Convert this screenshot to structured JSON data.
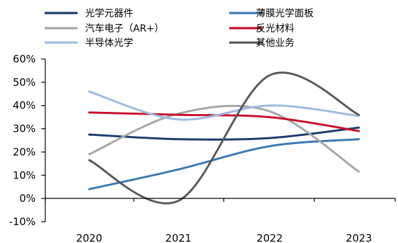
{
  "chart_data": {
    "type": "line",
    "title": "",
    "xlabel": "",
    "ylabel": "",
    "categories": [
      "2020",
      "2021",
      "2022",
      "2023"
    ],
    "ylim": [
      -10,
      60
    ],
    "y_unit": "%",
    "y_ticks": [
      "60%",
      "50%",
      "40%",
      "30%",
      "20%",
      "10%",
      "0%",
      "-10%"
    ],
    "smooth": true,
    "grid": false,
    "legend_position": "top",
    "series": [
      {
        "name": "光学元器件",
        "color": "#1b3c6e",
        "values": [
          27.5,
          25.5,
          26.0,
          30.5
        ]
      },
      {
        "name": "薄膜光学面板",
        "color": "#3a78b5",
        "values": [
          4.0,
          12.5,
          22.5,
          25.5
        ]
      },
      {
        "name": "汽车电子（AR+）",
        "color": "#a6a6a6",
        "values": [
          19.0,
          36.5,
          37.5,
          11.5
        ]
      },
      {
        "name": "反光材料",
        "color": "#c8102e",
        "values": [
          37.0,
          36.0,
          35.0,
          29.0
        ]
      },
      {
        "name": "半导体光学",
        "color": "#9dbbe3",
        "values": [
          46.0,
          34.0,
          40.0,
          35.5
        ]
      },
      {
        "name": "其他业务",
        "color": "#595959",
        "values": [
          16.5,
          -1.0,
          53.0,
          36.0
        ]
      }
    ]
  }
}
